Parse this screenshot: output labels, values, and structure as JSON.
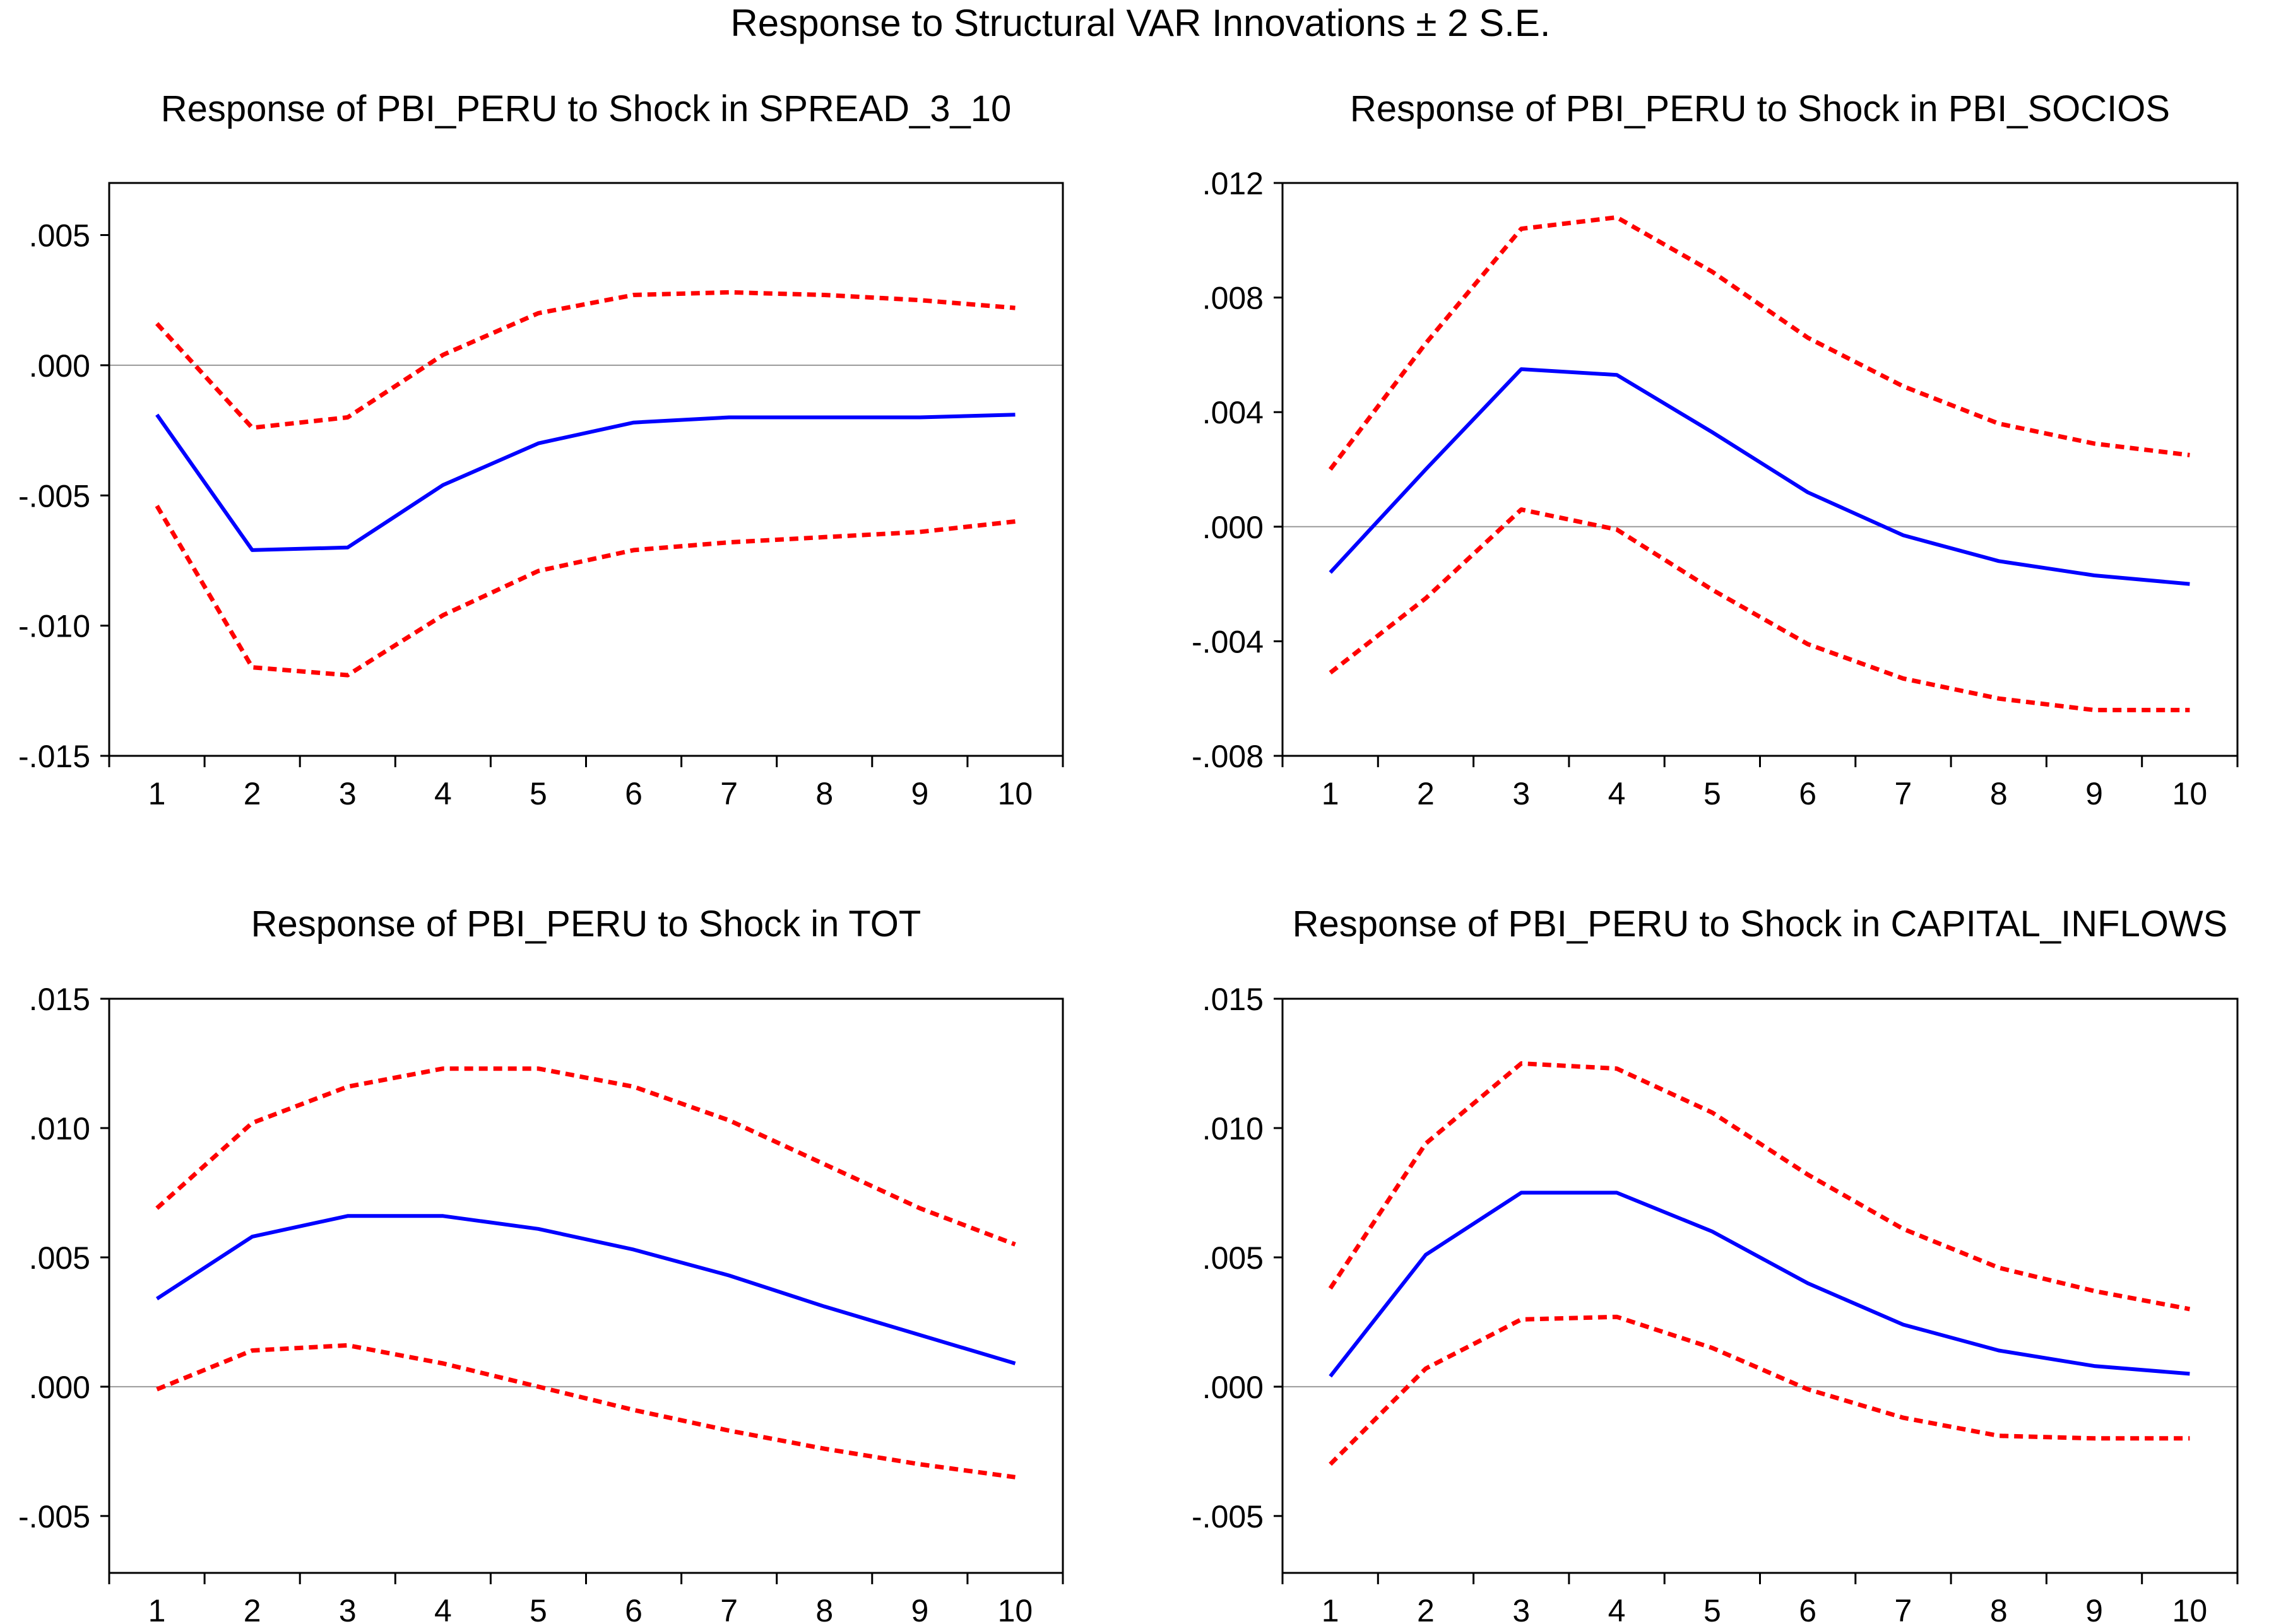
{
  "title": "Response to Structural VAR Innovations ± 2 S.E.",
  "colors": {
    "response": "#0000ff",
    "bands": "#ff0000",
    "zero_line": "#999999",
    "frame": "#000000"
  },
  "chart_data": [
    {
      "type": "line",
      "title": "Response of PBI_PERU to Shock in SPREAD_3_10",
      "x": [
        1,
        2,
        3,
        4,
        5,
        6,
        7,
        8,
        9,
        10
      ],
      "ylim": [
        -0.015,
        0.007
      ],
      "yticks": [
        -0.015,
        -0.01,
        -0.005,
        0.0,
        0.005
      ],
      "ytick_labels": [
        "-.015",
        "-.010",
        "-.005",
        ".000",
        ".005"
      ],
      "series": [
        {
          "role": "upper",
          "style": "dashed",
          "values": [
            0.0016,
            -0.0024,
            -0.002,
            0.0004,
            0.002,
            0.0027,
            0.0028,
            0.0027,
            0.0025,
            0.0022
          ]
        },
        {
          "role": "response",
          "style": "solid",
          "values": [
            -0.0019,
            -0.0071,
            -0.007,
            -0.0046,
            -0.003,
            -0.0022,
            -0.002,
            -0.002,
            -0.002,
            -0.0019
          ]
        },
        {
          "role": "lower",
          "style": "dashed",
          "values": [
            -0.0054,
            -0.0116,
            -0.0119,
            -0.0096,
            -0.0079,
            -0.0071,
            -0.0068,
            -0.0066,
            -0.0064,
            -0.006
          ]
        }
      ]
    },
    {
      "type": "line",
      "title": "Response of PBI_PERU to Shock in PBI_SOCIOS",
      "x": [
        1,
        2,
        3,
        4,
        5,
        6,
        7,
        8,
        9,
        10
      ],
      "ylim": [
        -0.008,
        0.012
      ],
      "yticks": [
        -0.008,
        -0.004,
        0.0,
        0.004,
        0.008,
        0.012
      ],
      "ytick_labels": [
        "-.008",
        "-.004",
        ".000",
        ".004",
        ".008",
        ".012"
      ],
      "series": [
        {
          "role": "upper",
          "style": "dashed",
          "values": [
            0.002,
            0.0064,
            0.0104,
            0.0108,
            0.0089,
            0.0066,
            0.0049,
            0.0036,
            0.0029,
            0.0025
          ]
        },
        {
          "role": "response",
          "style": "solid",
          "values": [
            -0.0016,
            0.002,
            0.0055,
            0.0053,
            0.0033,
            0.0012,
            -0.0003,
            -0.0012,
            -0.0017,
            -0.002
          ]
        },
        {
          "role": "lower",
          "style": "dashed",
          "values": [
            -0.0051,
            -0.0025,
            0.0006,
            -0.0001,
            -0.0022,
            -0.0041,
            -0.0053,
            -0.006,
            -0.0064,
            -0.0064
          ]
        }
      ]
    },
    {
      "type": "line",
      "title": "Response of PBI_PERU to Shock in TOT",
      "x": [
        1,
        2,
        3,
        4,
        5,
        6,
        7,
        8,
        9,
        10
      ],
      "ylim": [
        -0.0072,
        0.015
      ],
      "yticks": [
        -0.005,
        0.0,
        0.005,
        0.01,
        0.015
      ],
      "ytick_labels": [
        "-.005",
        ".000",
        ".005",
        ".010",
        ".015"
      ],
      "series": [
        {
          "role": "upper",
          "style": "dashed",
          "values": [
            0.0069,
            0.0102,
            0.0116,
            0.0123,
            0.0123,
            0.0116,
            0.0103,
            0.0086,
            0.0069,
            0.0055
          ]
        },
        {
          "role": "response",
          "style": "solid",
          "values": [
            0.0034,
            0.0058,
            0.0066,
            0.0066,
            0.0061,
            0.0053,
            0.0043,
            0.0031,
            0.002,
            0.0009
          ]
        },
        {
          "role": "lower",
          "style": "dashed",
          "values": [
            -0.0001,
            0.0014,
            0.0016,
            0.0009,
            0.0,
            -0.0009,
            -0.0017,
            -0.0024,
            -0.003,
            -0.0035
          ]
        }
      ]
    },
    {
      "type": "line",
      "title": "Response of PBI_PERU to Shock in CAPITAL_INFLOWS",
      "x": [
        1,
        2,
        3,
        4,
        5,
        6,
        7,
        8,
        9,
        10
      ],
      "ylim": [
        -0.0072,
        0.015
      ],
      "yticks": [
        -0.005,
        0.0,
        0.005,
        0.01,
        0.015
      ],
      "ytick_labels": [
        "-.005",
        ".000",
        ".005",
        ".010",
        ".015"
      ],
      "series": [
        {
          "role": "upper",
          "style": "dashed",
          "values": [
            0.0038,
            0.0094,
            0.0125,
            0.0123,
            0.0106,
            0.0082,
            0.0061,
            0.0046,
            0.0037,
            0.003
          ]
        },
        {
          "role": "response",
          "style": "solid",
          "values": [
            0.0004,
            0.0051,
            0.0075,
            0.0075,
            0.006,
            0.004,
            0.0024,
            0.0014,
            0.0008,
            0.0005
          ]
        },
        {
          "role": "lower",
          "style": "dashed",
          "values": [
            -0.003,
            0.0007,
            0.0026,
            0.0027,
            0.0015,
            -0.0001,
            -0.0012,
            -0.0019,
            -0.002,
            -0.002
          ]
        }
      ]
    }
  ]
}
